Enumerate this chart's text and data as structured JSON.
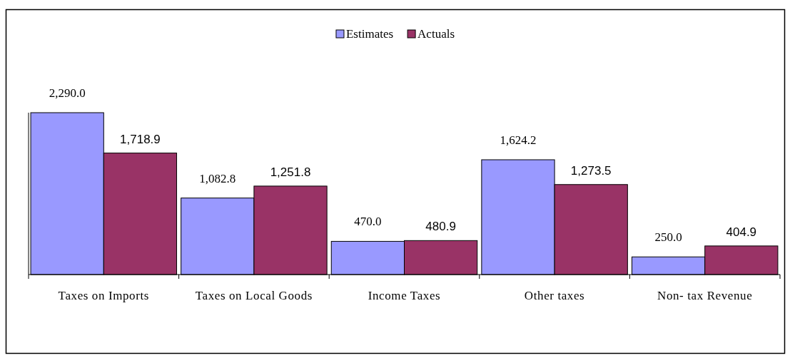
{
  "chart_data": {
    "type": "bar",
    "categories": [
      "Taxes on Imports",
      "Taxes on Local Goods",
      "Income Taxes",
      "Other taxes",
      "Non- tax Revenue"
    ],
    "series": [
      {
        "name": "Estimates",
        "color": "#9999ff",
        "values": [
          2290.0,
          1082.8,
          470.0,
          1624.2,
          250.0
        ],
        "value_labels": [
          "2,290.0",
          "1,082.8",
          "470.0",
          "1,624.2",
          "250.0"
        ]
      },
      {
        "name": "Actuals",
        "color": "#993366",
        "values": [
          1718.9,
          1251.8,
          480.9,
          1273.5,
          404.9
        ],
        "value_labels": [
          "1,718.9",
          "1,251.8",
          "480.9",
          "1,273.5",
          "404.9"
        ]
      }
    ],
    "legend": "top"
  }
}
